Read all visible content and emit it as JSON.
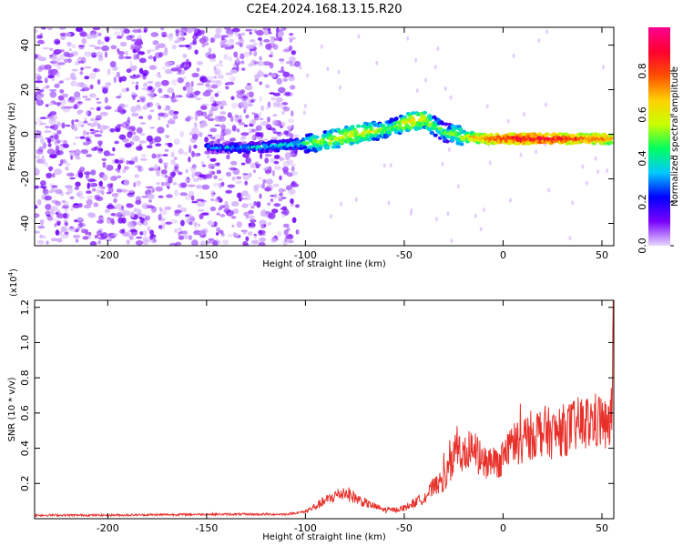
{
  "page_title": "C2E4.2024.168.13.15.R20",
  "chart_data": [
    {
      "type": "heatmap",
      "xlabel": "Height of straight line (km)",
      "ylabel": "Frequency (Hz)",
      "xlim": [
        -237,
        56
      ],
      "ylim": [
        -50,
        48
      ],
      "x_ticks": [
        "-200",
        "-150",
        "-100",
        "-50",
        "0",
        "50"
      ],
      "y_ticks": [
        "-40",
        "-20",
        "0",
        "20",
        "40"
      ],
      "colorbar": {
        "label": "Normalized spectral amplitude",
        "range": [
          0,
          1
        ],
        "ticks": [
          "0.0",
          "0.2",
          "0.4",
          "0.6",
          "0.8"
        ],
        "colors": [
          "#e6d8ff",
          "#7a00ff",
          "#0000ff",
          "#00c8ff",
          "#00ff60",
          "#c8ff00",
          "#ffd000",
          "#ff5000",
          "#ff0030",
          "#ff0090"
        ]
      },
      "noise_region_x": [
        -237,
        -104
      ],
      "ridge": {
        "x": [
          -150,
          -130,
          -110,
          -100,
          -90,
          -80,
          -70,
          -60,
          -55,
          -50,
          -45,
          -40,
          -35,
          -30,
          -25,
          -20,
          -10,
          0,
          10,
          20,
          30,
          40,
          50,
          55
        ],
        "y": [
          -6,
          -6,
          -5,
          -4,
          -3,
          -1,
          1,
          2,
          3,
          5,
          6,
          7,
          4,
          1,
          0,
          -1,
          -2,
          -2,
          -2,
          -2,
          -2,
          -2,
          -2,
          -2
        ],
        "amplitude": [
          0.3,
          0.35,
          0.4,
          0.45,
          0.55,
          0.6,
          0.6,
          0.5,
          0.5,
          0.6,
          0.65,
          0.6,
          0.5,
          0.45,
          0.5,
          0.6,
          0.75,
          0.85,
          0.9,
          0.9,
          0.85,
          0.8,
          0.8,
          0.7
        ]
      }
    },
    {
      "type": "line",
      "xlabel": "Height of straight line (km)",
      "ylabel": "SNR (10 * v/v)",
      "y_exponent": "(x10",
      "y_exponent_power": "4",
      "y_exponent_close": ")",
      "xlim": [
        -237,
        56
      ],
      "ylim": [
        0,
        1.24
      ],
      "x_ticks": [
        "-200",
        "-150",
        "-100",
        "-50",
        "0",
        "50"
      ],
      "y_ticks": [
        "0.2",
        "0.4",
        "0.6",
        "0.8",
        "1.0",
        "1.2"
      ],
      "color": "#e8302a",
      "series": [
        {
          "x": [
            -237,
            -200,
            -150,
            -110,
            -100,
            -95,
            -90,
            -85,
            -80,
            -75,
            -70,
            -65,
            -60,
            -55,
            -50,
            -45,
            -40,
            -35,
            -30,
            -26,
            -24,
            -20,
            -16,
            -10,
            -5,
            0,
            5,
            10,
            15,
            20,
            25,
            30,
            35,
            40,
            45,
            50,
            53,
            55,
            56
          ],
          "y": [
            0.02,
            0.02,
            0.025,
            0.025,
            0.04,
            0.07,
            0.1,
            0.13,
            0.15,
            0.12,
            0.09,
            0.07,
            0.05,
            0.05,
            0.06,
            0.09,
            0.12,
            0.18,
            0.22,
            0.3,
            0.45,
            0.35,
            0.4,
            0.32,
            0.3,
            0.35,
            0.42,
            0.45,
            0.48,
            0.5,
            0.48,
            0.5,
            0.52,
            0.54,
            0.55,
            0.56,
            0.5,
            0.6,
            1.22
          ]
        }
      ]
    }
  ]
}
